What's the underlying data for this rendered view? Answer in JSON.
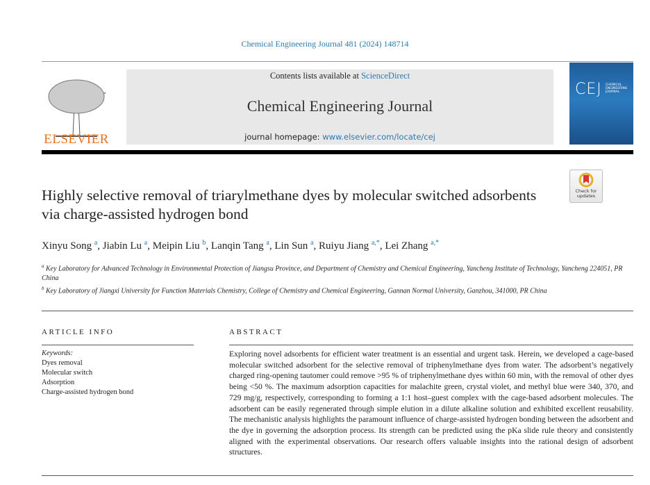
{
  "header": {
    "citation": "Chemical Engineering Journal 481 (2024) 148714",
    "contents_prefix": "Contents lists available at ",
    "contents_link": "ScienceDirect",
    "journal_title": "Chemical Engineering Journal",
    "homepage_prefix": "journal homepage: ",
    "homepage_link": "www.elsevier.com/locate/cej",
    "publisher": "ELSEVIER",
    "cover_logo": "CEJ",
    "cover_subtitle": "CHEMICAL ENGINEERING JOURNAL",
    "check_updates": "Check for updates"
  },
  "article": {
    "title": "Highly selective removal of triarylmethane dyes by molecular switched adsorbents via charge-assisted hydrogen bond",
    "authors": [
      {
        "name": "Xinyu Song",
        "sup": "a"
      },
      {
        "name": "Jiabin Lu",
        "sup": "a"
      },
      {
        "name": "Meipin Liu",
        "sup": "b"
      },
      {
        "name": "Lanqin Tang",
        "sup": "a"
      },
      {
        "name": "Lin Sun",
        "sup": "a"
      },
      {
        "name": "Ruiyu Jiang",
        "sup": "a,*"
      },
      {
        "name": "Lei Zhang",
        "sup": "a,*"
      }
    ],
    "affiliations": [
      {
        "sup": "a",
        "text": "Key Laboratory for Advanced Technology in Environmental Protection of Jiangsu Province, and Department of Chemistry and Chemical Engineering, Yancheng Institute of Technology, Yancheng 224051, PR China"
      },
      {
        "sup": "b",
        "text": "Key Laboratory of Jiangxi University for Function Materials Chemistry, College of Chemistry and Chemical Engineering, Gannan Normal University, Ganzhou, 341000, PR China"
      }
    ]
  },
  "article_info": {
    "heading": "ARTICLE INFO",
    "keywords_label": "Keywords:",
    "keywords": [
      "Dyes removal",
      "Molecular switch",
      "Adsorption",
      "Charge-assisted hydrogen bond"
    ]
  },
  "abstract": {
    "heading": "ABSTRACT",
    "text": "Exploring novel adsorbents for efficient water treatment is an essential and urgent task. Herein, we developed a cage-based molecular switched adsorbent for the selective removal of triphenylmethane dyes from water. The adsorbent’s negatively charged ring-opening tautomer could remove >95 % of triphenylmethane dyes within 60 min, with the removal of other dyes being <50 %. The maximum adsorption capacities for malachite green, crystal violet, and methyl blue were 340, 370, and 729 mg/g, respectively, corresponding to forming a 1:1 host–guest complex with the cage-based adsorbent molecules. The adsorbent can be easily regenerated through simple elution in a dilute alkaline solution and exhibited excellent reusability. The mechanistic analysis highlights the paramount influence of charge-assisted hydrogen bonding between the adsorbent and the dye in governing the adsorption process. Its strength can be predicted using the pKa slide rule theory and consistently aligned with the experimental observations. Our research offers valuable insights into the rational design of adsorbent structures."
  },
  "colors": {
    "link": "#2a7ab0",
    "elsevier_orange": "#e9711c",
    "header_gray": "#e8e8e8"
  }
}
